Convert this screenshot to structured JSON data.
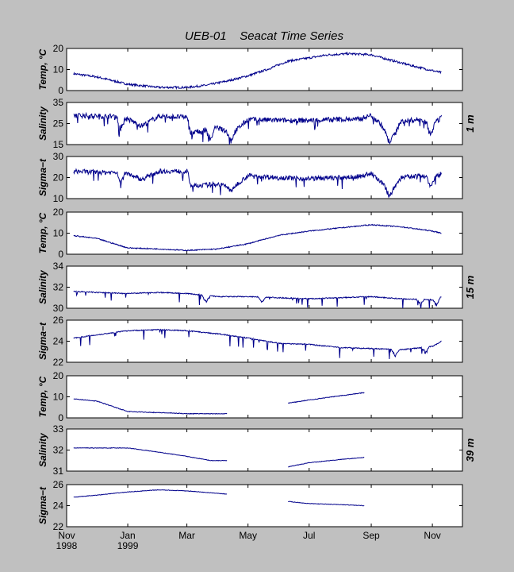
{
  "figure": {
    "title": "UEB-01    Seacat Time Series",
    "depth_labels": [
      "1 m",
      "15 m",
      "39 m"
    ],
    "x_ticks": [
      {
        "date": "1998-11-01",
        "label": "Nov",
        "label2": "1998"
      },
      {
        "date": "1999-01-01",
        "label": "Jan",
        "label2": "1999"
      },
      {
        "date": "1999-03-01",
        "label": "Mar",
        "label2": ""
      },
      {
        "date": "1999-05-01",
        "label": "May",
        "label2": ""
      },
      {
        "date": "1999-07-01",
        "label": "Jul",
        "label2": ""
      },
      {
        "date": "1999-09-01",
        "label": "Sep",
        "label2": ""
      },
      {
        "date": "1999-11-01",
        "label": "Nov",
        "label2": ""
      }
    ],
    "xlim": [
      "1998-11-01",
      "1999-12-01"
    ],
    "line_color": "#00008b",
    "background": "#c0c0c0"
  },
  "chart_data": [
    {
      "type": "line",
      "depth": "1 m",
      "ylabel": "Temp, °C",
      "ylim": [
        0,
        20
      ],
      "yticks": [
        0,
        10,
        20
      ],
      "noise": 0.25,
      "x": [
        "1998-11-08",
        "1998-12-01",
        "1999-01-01",
        "1999-02-01",
        "1999-03-01",
        "1999-03-20",
        "1999-04-10",
        "1999-05-01",
        "1999-05-20",
        "1999-06-10",
        "1999-07-01",
        "1999-07-20",
        "1999-08-10",
        "1999-09-01",
        "1999-09-20",
        "1999-10-10",
        "1999-11-01",
        "1999-11-10"
      ],
      "y": [
        8,
        6.5,
        3,
        1.5,
        1.5,
        2.5,
        4.5,
        7,
        10,
        14,
        15.5,
        17,
        17.5,
        17,
        14.5,
        12,
        9.5,
        8.5
      ]
    },
    {
      "type": "line",
      "depth": "1 m",
      "ylabel": "Salinity",
      "ylim": [
        15,
        35
      ],
      "yticks": [
        15,
        25,
        35
      ],
      "noise": 0.6,
      "x": [
        "1998-11-08",
        "1998-12-01",
        "1998-12-20",
        "1999-01-01",
        "1999-01-15",
        "1999-02-01",
        "1999-03-01",
        "1999-03-10",
        "1999-04-01",
        "1999-04-15",
        "1999-05-01",
        "1999-06-01",
        "1999-07-01",
        "1999-08-01",
        "1999-08-20",
        "1999-09-01",
        "1999-09-10",
        "1999-09-20",
        "1999-10-01",
        "1999-10-20",
        "1999-11-01",
        "1999-11-10"
      ],
      "y": [
        29,
        28.5,
        28.5,
        27,
        24,
        28.5,
        28,
        21,
        23,
        20,
        27,
        26.5,
        26.5,
        27,
        27,
        29,
        25,
        17,
        26,
        27,
        24,
        28
      ],
      "dips": [
        {
          "x": "1998-12-25",
          "v": 20
        },
        {
          "x": "1999-03-06",
          "v": 18
        },
        {
          "x": "1999-03-25",
          "v": 16
        },
        {
          "x": "1999-04-14",
          "v": 16
        },
        {
          "x": "1999-09-19",
          "v": 16
        },
        {
          "x": "1999-10-30",
          "v": 18
        }
      ]
    },
    {
      "type": "line",
      "depth": "1 m",
      "ylabel": "Sigma−t",
      "ylim": [
        10,
        30
      ],
      "yticks": [
        10,
        20,
        30
      ],
      "noise": 0.55,
      "x": [
        "1998-11-08",
        "1998-12-01",
        "1998-12-20",
        "1999-01-01",
        "1999-01-15",
        "1999-02-01",
        "1999-03-01",
        "1999-03-10",
        "1999-04-01",
        "1999-04-15",
        "1999-05-01",
        "1999-06-01",
        "1999-07-01",
        "1999-08-01",
        "1999-08-20",
        "1999-09-01",
        "1999-09-10",
        "1999-09-20",
        "1999-10-01",
        "1999-10-20",
        "1999-11-01",
        "1999-11-10"
      ],
      "y": [
        23,
        22.5,
        22.5,
        22,
        19,
        23,
        23,
        16,
        17,
        15,
        21,
        20,
        19.5,
        20,
        20.5,
        22,
        18,
        13,
        20,
        21,
        19,
        22
      ],
      "dips": [
        {
          "x": "1998-12-25",
          "v": 16
        },
        {
          "x": "1999-03-06",
          "v": 14
        },
        {
          "x": "1999-04-14",
          "v": 13
        },
        {
          "x": "1999-09-19",
          "v": 11
        },
        {
          "x": "1999-10-30",
          "v": 15
        }
      ]
    },
    {
      "type": "line",
      "depth": "15 m",
      "ylabel": "Temp, °C",
      "ylim": [
        0,
        20
      ],
      "yticks": [
        0,
        10,
        20
      ],
      "noise": 0.12,
      "x": [
        "1998-11-08",
        "1998-12-01",
        "1999-01-01",
        "1999-02-01",
        "1999-03-01",
        "1999-04-01",
        "1999-05-01",
        "1999-06-01",
        "1999-07-01",
        "1999-08-01",
        "1999-09-01",
        "1999-10-01",
        "1999-11-01",
        "1999-11-10"
      ],
      "y": [
        8.8,
        7.5,
        3,
        2.5,
        1.8,
        2.5,
        5,
        9,
        11,
        12.5,
        14,
        13,
        11,
        10
      ]
    },
    {
      "type": "line",
      "depth": "15 m",
      "ylabel": "Salinity",
      "ylim": [
        30,
        34
      ],
      "yticks": [
        30,
        32,
        34
      ],
      "noise": 0.12,
      "x": [
        "1998-11-08",
        "1998-12-01",
        "1999-01-01",
        "1999-02-01",
        "1999-03-01",
        "1999-04-01",
        "1999-05-01",
        "1999-06-01",
        "1999-07-01",
        "1999-08-01",
        "1999-09-01",
        "1999-10-01",
        "1999-11-01",
        "1999-11-10"
      ],
      "y": [
        31.6,
        31.5,
        31.4,
        31.5,
        31.4,
        31.1,
        31.1,
        31,
        30.9,
        31,
        31.1,
        30.9,
        30.8,
        31.1
      ],
      "dips": [
        {
          "x": "1999-03-20",
          "v": 30.4
        },
        {
          "x": "1999-05-15",
          "v": 30.5
        },
        {
          "x": "1999-10-20",
          "v": 30.3
        },
        {
          "x": "1999-11-05",
          "v": 30.2
        }
      ]
    },
    {
      "type": "line",
      "depth": "15 m",
      "ylabel": "Sigma−t",
      "ylim": [
        22,
        26
      ],
      "yticks": [
        22,
        24,
        26
      ],
      "noise": 0.12,
      "x": [
        "1998-11-08",
        "1998-12-01",
        "1999-01-01",
        "1999-02-01",
        "1999-03-01",
        "1999-04-01",
        "1999-05-01",
        "1999-06-01",
        "1999-07-01",
        "1999-08-01",
        "1999-09-01",
        "1999-10-01",
        "1999-11-01",
        "1999-11-10"
      ],
      "y": [
        24.3,
        24.6,
        25,
        25.1,
        25,
        24.7,
        24.3,
        23.8,
        23.7,
        23.4,
        23.3,
        23.2,
        23.5,
        24
      ],
      "dips": [
        {
          "x": "1999-09-25",
          "v": 22.5
        },
        {
          "x": "1999-10-25",
          "v": 22.8
        }
      ]
    },
    {
      "type": "line",
      "depth": "39 m",
      "ylabel": "Temp, °C",
      "ylim": [
        0,
        20
      ],
      "yticks": [
        0,
        10,
        20
      ],
      "noise": 0.08,
      "segments": [
        {
          "x": [
            "1998-11-08",
            "1998-12-01",
            "1999-01-01",
            "1999-02-01",
            "1999-03-01",
            "1999-04-10"
          ],
          "y": [
            9,
            8,
            3,
            2.5,
            2,
            2
          ]
        },
        {
          "x": [
            "1999-06-10",
            "1999-07-01",
            "1999-08-01",
            "1999-08-25"
          ],
          "y": [
            7,
            8.5,
            10.5,
            12
          ]
        }
      ]
    },
    {
      "type": "line",
      "depth": "39 m",
      "ylabel": "Salinity",
      "ylim": [
        31,
        33
      ],
      "yticks": [
        31,
        32,
        33
      ],
      "noise": 0.06,
      "segments": [
        {
          "x": [
            "1998-11-08",
            "1998-12-01",
            "1999-01-01",
            "1999-02-01",
            "1999-03-01",
            "1999-03-25",
            "1999-04-10"
          ],
          "y": [
            32.1,
            32.1,
            32.1,
            31.9,
            31.7,
            31.5,
            31.5
          ]
        },
        {
          "x": [
            "1999-06-10",
            "1999-07-01",
            "1999-08-01",
            "1999-08-25"
          ],
          "y": [
            31.2,
            31.4,
            31.55,
            31.65
          ]
        }
      ]
    },
    {
      "type": "line",
      "depth": "39 m",
      "ylabel": "Sigma−t",
      "ylim": [
        22,
        26
      ],
      "yticks": [
        22,
        24,
        26
      ],
      "noise": 0.06,
      "segments": [
        {
          "x": [
            "1998-11-08",
            "1998-12-01",
            "1999-01-01",
            "1999-02-01",
            "1999-03-01",
            "1999-04-10"
          ],
          "y": [
            24.8,
            25,
            25.3,
            25.5,
            25.4,
            25.1
          ]
        },
        {
          "x": [
            "1999-06-10",
            "1999-07-01",
            "1999-08-01",
            "1999-08-25"
          ],
          "y": [
            24.4,
            24.2,
            24.1,
            24
          ]
        }
      ]
    }
  ]
}
